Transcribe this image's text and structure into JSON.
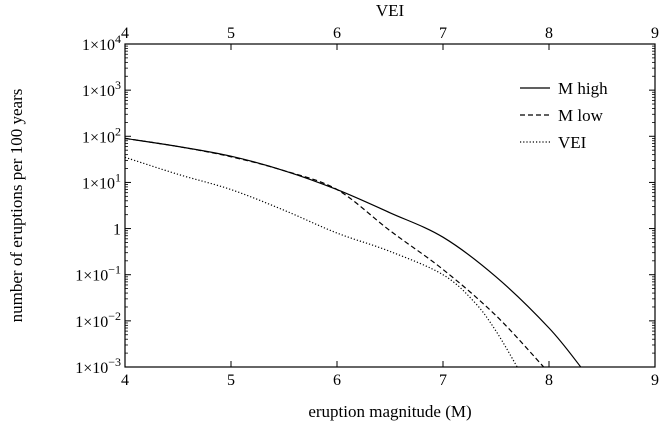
{
  "chart_data": {
    "type": "line",
    "xlabel": "eruption magnitude (M)",
    "top_xlabel": "VEI",
    "ylabel": "number of eruptions per 100 years",
    "xlim": [
      4,
      9
    ],
    "ylim": [
      0.001,
      10000
    ],
    "yscale": "log",
    "x_ticks": [
      4,
      5,
      6,
      7,
      8,
      9
    ],
    "x_tick_labels": [
      "4",
      "5",
      "6",
      "7",
      "8",
      "9"
    ],
    "top_x_ticks": [
      4,
      5,
      6,
      7,
      8,
      9
    ],
    "top_x_tick_labels": [
      "4",
      "5",
      "6",
      "7",
      "8",
      "9"
    ],
    "y_ticks": [
      0.001,
      0.01,
      0.1,
      1,
      10,
      100,
      1000,
      10000
    ],
    "y_tick_labels": [
      {
        "base": "1×10",
        "exp": "−3"
      },
      {
        "base": "1×10",
        "exp": "−2"
      },
      {
        "base": "1×10",
        "exp": "−1"
      },
      {
        "base": "1",
        "exp": ""
      },
      {
        "base": "1×10",
        "exp": "1"
      },
      {
        "base": "1×10",
        "exp": "2"
      },
      {
        "base": "1×10",
        "exp": "3"
      },
      {
        "base": "1×10",
        "exp": "4"
      }
    ],
    "legend_position": "top-right",
    "grid": false,
    "series": [
      {
        "name": "M high",
        "style": "solid",
        "x": [
          4.0,
          4.5,
          5.0,
          5.5,
          6.0,
          6.5,
          7.0,
          7.5,
          8.0,
          8.3
        ],
        "y": [
          90,
          60,
          37,
          18,
          7,
          2.2,
          0.65,
          0.09,
          0.007,
          0.001
        ]
      },
      {
        "name": "M low",
        "style": "dashed",
        "x": [
          4.0,
          4.5,
          5.0,
          5.5,
          6.0,
          6.5,
          7.0,
          7.5,
          7.95
        ],
        "y": [
          90,
          60,
          36,
          18,
          7,
          0.9,
          0.13,
          0.013,
          0.001
        ]
      },
      {
        "name": "VEI",
        "style": "dotted",
        "x": [
          4.0,
          4.5,
          5.0,
          5.5,
          6.0,
          6.5,
          7.0,
          7.3,
          7.5,
          7.7
        ],
        "y": [
          35,
          15,
          7,
          2.5,
          0.8,
          0.32,
          0.1,
          0.025,
          0.006,
          0.001
        ]
      }
    ]
  }
}
